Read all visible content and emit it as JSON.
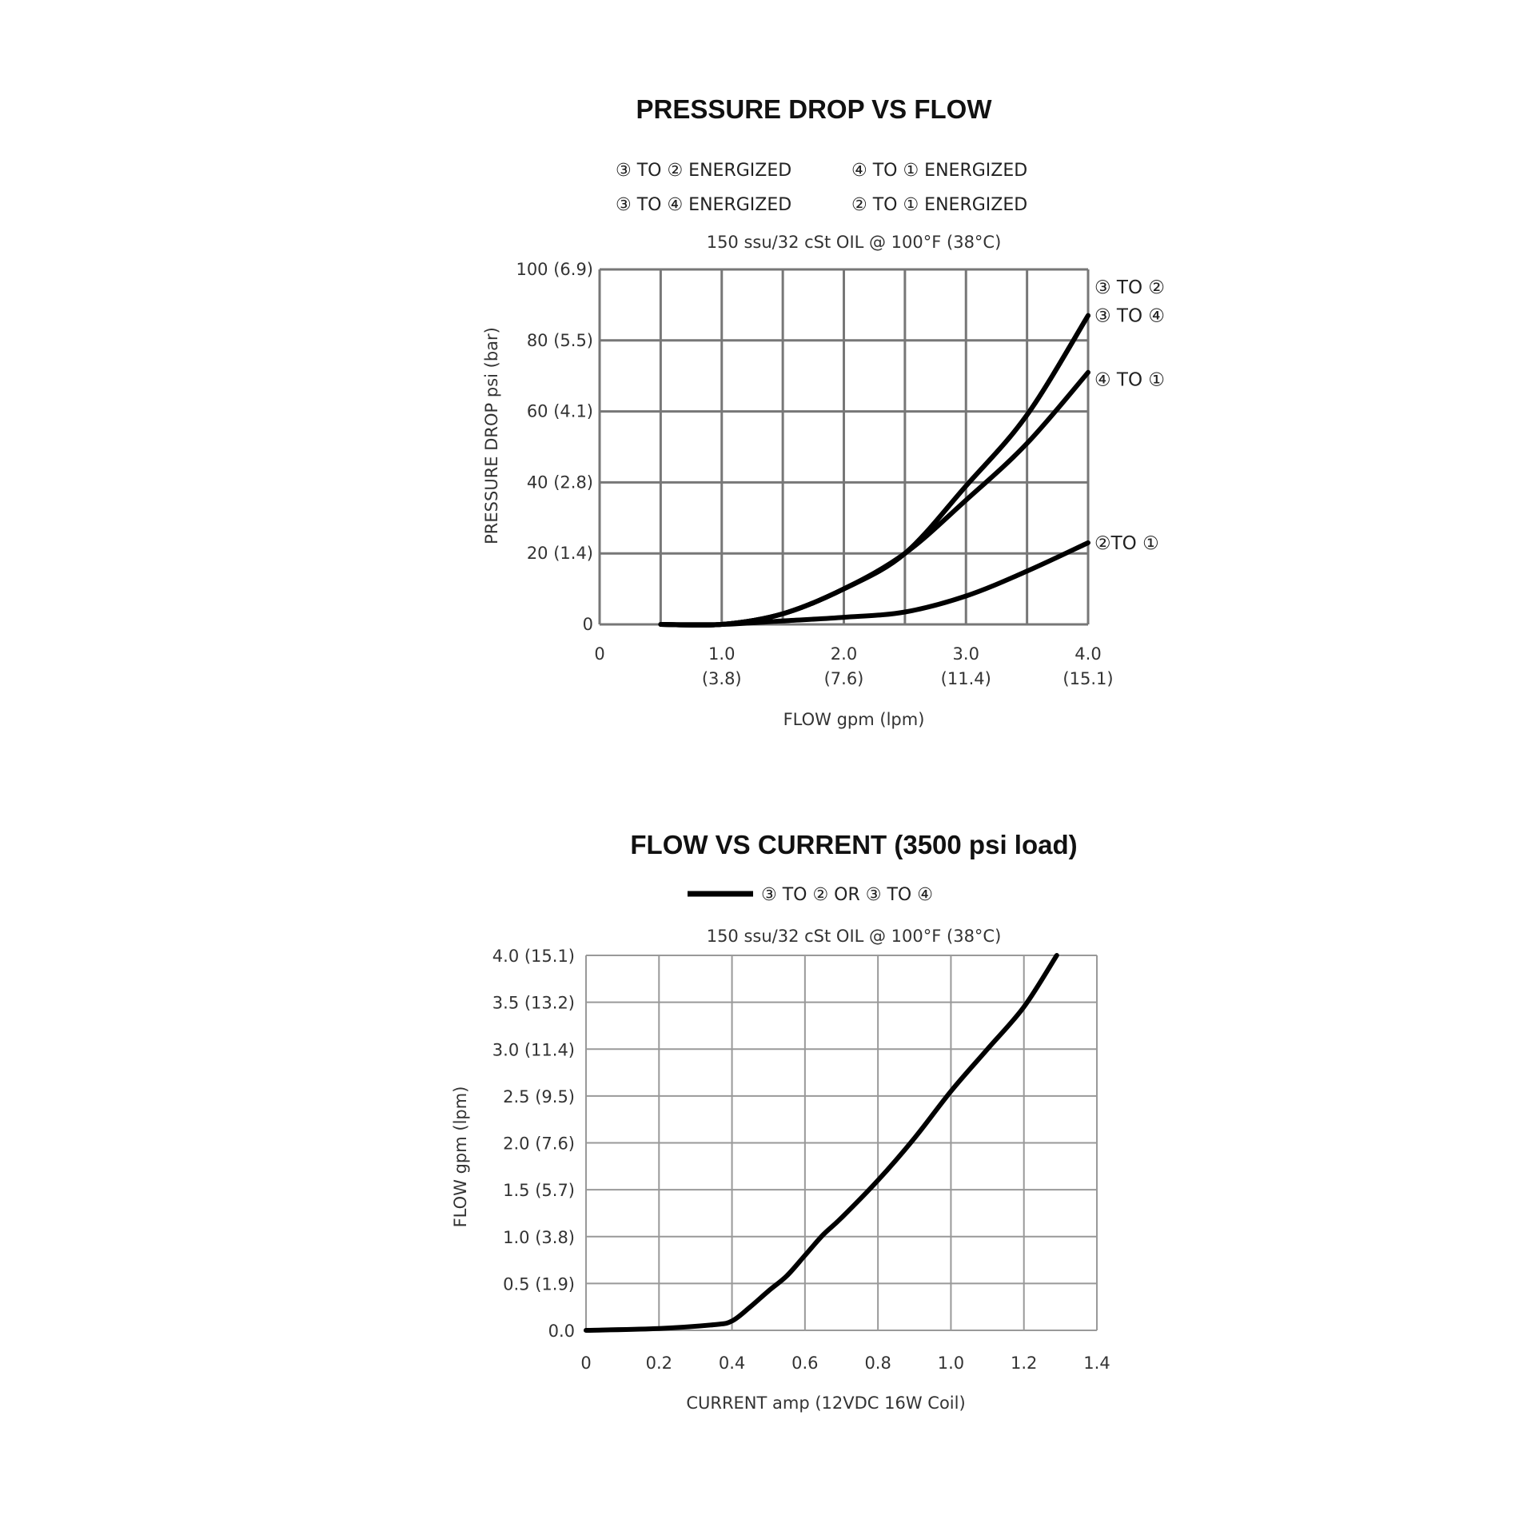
{
  "chart_data": [
    {
      "type": "line",
      "title": "PRESSURE DROP VS FLOW",
      "legend": [
        "③ TO ② ENERGIZED",
        "④ TO ① ENERGIZED",
        "③ TO ④ ENERGIZED",
        "② TO ① ENERGIZED"
      ],
      "note": "150 ssu/32 cSt OIL @ 100°F (38°C)",
      "xlabel": "FLOW gpm (lpm)",
      "ylabel": "PRESSURE DROP psi (bar)",
      "xlim": [
        0,
        4
      ],
      "ylim": [
        0,
        100
      ],
      "grid": true,
      "x_ticks": [
        {
          "v": 0,
          "l1": "0",
          "l2": ""
        },
        {
          "v": 1,
          "l1": "1.0",
          "l2": "(3.8)"
        },
        {
          "v": 2,
          "l1": "2.0",
          "l2": "(7.6)"
        },
        {
          "v": 3,
          "l1": "3.0",
          "l2": "(11.4)"
        },
        {
          "v": 4,
          "l1": "4.0",
          "l2": "(15.1)"
        }
      ],
      "y_ticks": [
        {
          "v": 0,
          "label": "0"
        },
        {
          "v": 20,
          "label": "20 (1.4)"
        },
        {
          "v": 40,
          "label": "40 (2.8)"
        },
        {
          "v": 60,
          "label": "60 (4.1)"
        },
        {
          "v": 80,
          "label": "80 (5.5)"
        },
        {
          "v": 100,
          "label": "100 (6.9)"
        }
      ],
      "series": [
        {
          "name": "③ TO ②",
          "x": [
            0.5,
            1.0,
            1.5,
            2.0,
            2.5,
            3.0,
            3.5,
            4.0
          ],
          "values": [
            0,
            0,
            3,
            10,
            20,
            39,
            59,
            87
          ]
        },
        {
          "name": "③ TO ④",
          "x": [
            0.5,
            1.0,
            1.5,
            2.0,
            2.5,
            3.0,
            3.5,
            4.0
          ],
          "values": [
            0,
            0,
            3,
            10,
            20,
            39,
            59,
            87
          ]
        },
        {
          "name": "④ TO ①",
          "x": [
            0.5,
            1.0,
            1.5,
            2.0,
            2.5,
            3.0,
            3.5,
            4.0
          ],
          "values": [
            0,
            0,
            3,
            10,
            20,
            35,
            51,
            71
          ]
        },
        {
          "name": "② TO ①",
          "x": [
            0.5,
            1.0,
            1.5,
            2.0,
            2.5,
            3.0,
            3.5,
            4.0
          ],
          "values": [
            0,
            0,
            1,
            2,
            3.5,
            8,
            15,
            23
          ]
        }
      ],
      "end_labels": [
        {
          "text": "③ TO ②",
          "y": 95
        },
        {
          "text": "③ TO ④",
          "y": 87
        },
        {
          "text": "④ TO ①",
          "y": 69
        },
        {
          "text": "②TO ①",
          "y": 23
        }
      ]
    },
    {
      "type": "line",
      "title": "FLOW VS CURRENT (3500 psi load)",
      "legend": [
        "③ TO ② OR ③ TO ④"
      ],
      "note": "150 ssu/32 cSt OIL @ 100°F (38°C)",
      "xlabel": "CURRENT amp (12VDC 16W Coil)",
      "ylabel": "FLOW gpm (lpm)",
      "xlim": [
        0,
        1.4
      ],
      "ylim": [
        0,
        4
      ],
      "grid": true,
      "x_ticks": [
        {
          "v": 0,
          "label": "0"
        },
        {
          "v": 0.2,
          "label": "0.2"
        },
        {
          "v": 0.4,
          "label": "0.4"
        },
        {
          "v": 0.6,
          "label": "0.6"
        },
        {
          "v": 0.8,
          "label": "0.8"
        },
        {
          "v": 1.0,
          "label": "1.0"
        },
        {
          "v": 1.2,
          "label": "1.2"
        },
        {
          "v": 1.4,
          "label": "1.4"
        }
      ],
      "y_ticks": [
        {
          "v": 0,
          "label": "0.0"
        },
        {
          "v": 0.5,
          "label": "0.5 (1.9)"
        },
        {
          "v": 1.0,
          "label": "1.0 (3.8)"
        },
        {
          "v": 1.5,
          "label": "1.5 (5.7)"
        },
        {
          "v": 2.0,
          "label": "2.0 (7.6)"
        },
        {
          "v": 2.5,
          "label": "2.5 (9.5)"
        },
        {
          "v": 3.0,
          "label": "3.0 (11.4)"
        },
        {
          "v": 3.5,
          "label": "3.5 (13.2)"
        },
        {
          "v": 4.0,
          "label": "4.0 (15.1)"
        }
      ],
      "series": [
        {
          "name": "③ TO ② OR ③ TO ④",
          "x": [
            0,
            0.2,
            0.35,
            0.4,
            0.45,
            0.5,
            0.55,
            0.6,
            0.65,
            0.7,
            0.8,
            0.9,
            1.0,
            1.1,
            1.2,
            1.29
          ],
          "values": [
            0,
            0.02,
            0.06,
            0.1,
            0.25,
            0.42,
            0.58,
            0.8,
            1.02,
            1.2,
            1.6,
            2.05,
            2.55,
            3.0,
            3.45,
            4.0
          ]
        }
      ]
    }
  ]
}
